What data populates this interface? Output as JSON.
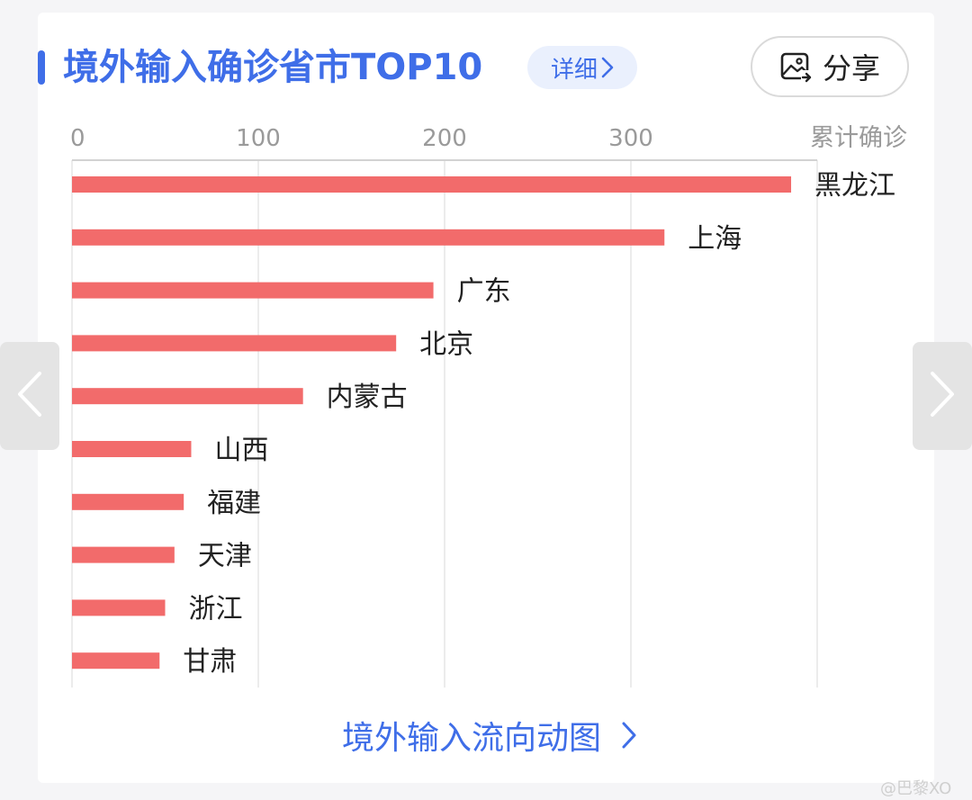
{
  "header": {
    "title": "境外输入确诊省市TOP10",
    "detail_label": "详细",
    "share_label": "分享",
    "accent_color": "#3f6ee8"
  },
  "chart_data": {
    "type": "bar",
    "orientation": "horizontal",
    "categories": [
      "黑龙江",
      "上海",
      "广东",
      "北京",
      "内蒙古",
      "山西",
      "福建",
      "天津",
      "浙江",
      "甘肃"
    ],
    "values": [
      386,
      318,
      194,
      174,
      124,
      64,
      60,
      55,
      50,
      47
    ],
    "xlim": [
      0,
      400
    ],
    "x_ticks": [
      "0",
      "100",
      "200",
      "300"
    ],
    "x_axis_label": "累计确诊",
    "bar_color": "#f26b6b",
    "grid": true
  },
  "footer": {
    "flow_link_label": "境外输入流向动图",
    "watermark": "@巴黎XO"
  },
  "icons": {
    "share": "image-share-icon",
    "prev": "chevron-left-icon",
    "next": "chevron-right-icon"
  }
}
